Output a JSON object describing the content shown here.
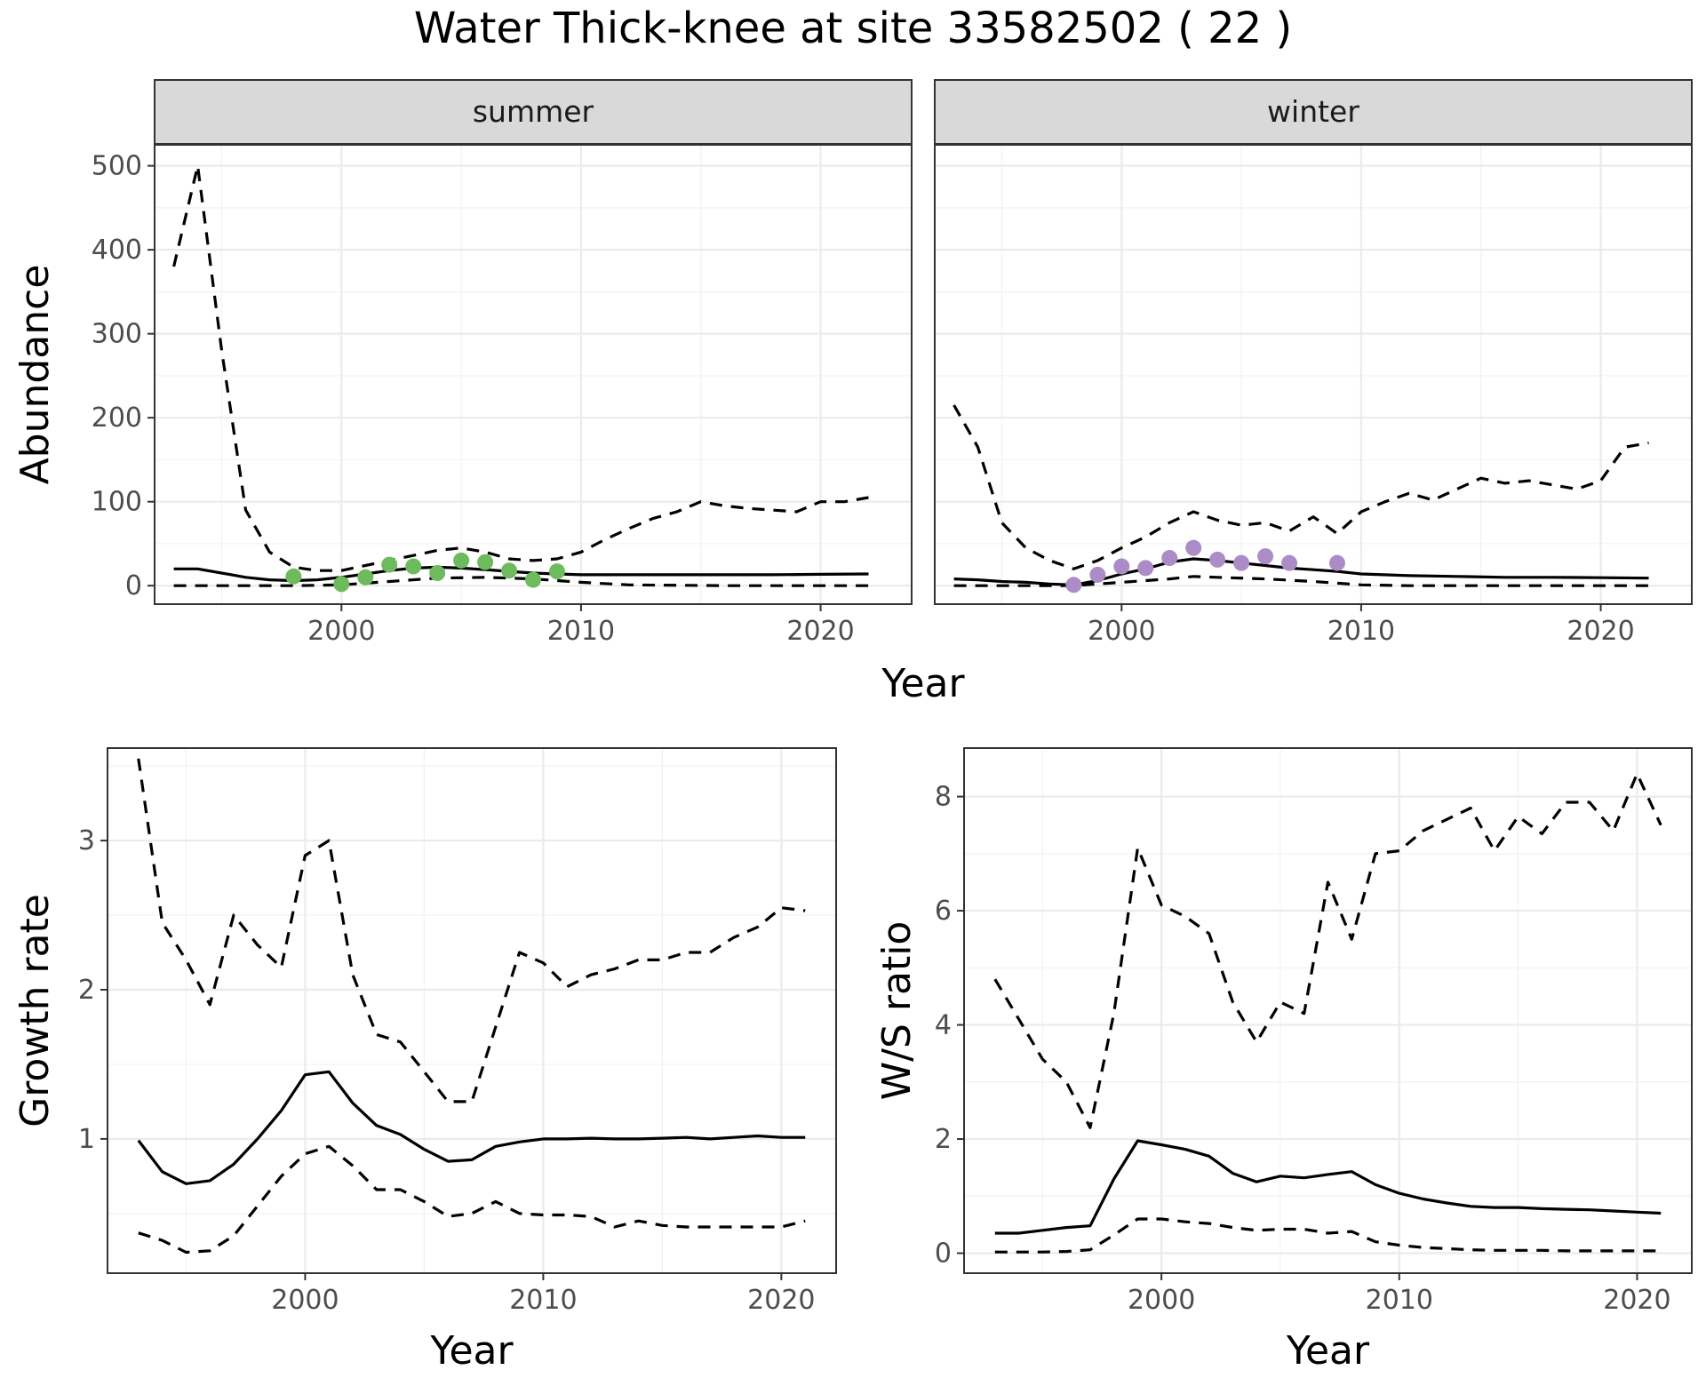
{
  "title": "Water Thick-knee at site 33582502 ( 22 )",
  "colors": {
    "summer_points": "#6dbb5c",
    "winter_points": "#ab8cc7",
    "strip_fill": "#d9d9d9"
  },
  "chart_data": [
    {
      "type": "line",
      "panel": "summer",
      "strip_label": "summer",
      "ylabel": "Abundance",
      "xlabel": "Year",
      "xlim": [
        1992.2,
        2023.8
      ],
      "ylim": [
        -22,
        525
      ],
      "x_ticks": [
        2000,
        2010,
        2020
      ],
      "y_ticks": [
        0,
        100,
        200,
        300,
        400,
        500
      ],
      "grid": true,
      "series": [
        {
          "style": "solid",
          "x": [
            1993,
            1994,
            1995,
            1996,
            1997,
            1998,
            1999,
            2000,
            2001,
            2002,
            2003,
            2004,
            2005,
            2006,
            2007,
            2008,
            2009,
            2010,
            2012,
            2014,
            2016,
            2018,
            2020,
            2022
          ],
          "y": [
            20,
            20,
            15,
            10,
            7,
            6,
            7,
            10,
            14,
            18,
            21,
            22,
            21,
            19,
            17,
            15,
            14,
            13,
            13,
            13,
            13,
            13,
            13.5,
            14
          ]
        },
        {
          "style": "dashed",
          "x": [
            1993,
            1994,
            1995,
            1996,
            1997,
            1998,
            1999,
            2000,
            2001,
            2002,
            2003,
            2004,
            2005,
            2006,
            2007,
            2008,
            2009,
            2010,
            2011,
            2012,
            2013,
            2014,
            2015,
            2016,
            2017,
            2018,
            2019,
            2020,
            2021,
            2022
          ],
          "y": [
            380,
            500,
            280,
            90,
            40,
            22,
            18,
            18,
            24,
            30,
            36,
            42,
            45,
            40,
            32,
            30,
            32,
            40,
            55,
            68,
            80,
            88,
            100,
            95,
            92,
            90,
            88,
            100,
            100,
            105
          ]
        },
        {
          "style": "dashed",
          "x": [
            1993,
            1996,
            1998,
            2000,
            2002,
            2004,
            2006,
            2008,
            2010,
            2012,
            2016,
            2022
          ],
          "y": [
            0,
            0,
            0,
            1,
            5,
            9,
            10,
            8,
            4,
            1,
            0,
            0
          ]
        },
        {
          "style": "points",
          "x": [
            1998,
            2000,
            2001,
            2002,
            2003,
            2004,
            2005,
            2006,
            2007,
            2008,
            2009
          ],
          "y": [
            11,
            2,
            10,
            25,
            23,
            15,
            30,
            28,
            18,
            7,
            17
          ]
        }
      ]
    },
    {
      "type": "line",
      "panel": "winter",
      "strip_label": "winter",
      "xlim": [
        1992.2,
        2023.8
      ],
      "ylim": [
        -22,
        525
      ],
      "x_ticks": [
        2000,
        2010,
        2020
      ],
      "grid": true,
      "series": [
        {
          "style": "solid",
          "x": [
            1993,
            1994,
            1995,
            1996,
            1997,
            1998,
            1999,
            2000,
            2001,
            2002,
            2003,
            2004,
            2005,
            2006,
            2007,
            2008,
            2009,
            2010,
            2012,
            2014,
            2016,
            2018,
            2020,
            2022
          ],
          "y": [
            8,
            7,
            5,
            4,
            2,
            1,
            6,
            14,
            20,
            28,
            32,
            30,
            27,
            24,
            21,
            19,
            17,
            14,
            12,
            11,
            10,
            10,
            9.5,
            9
          ]
        },
        {
          "style": "dashed",
          "x": [
            1993,
            1994,
            1995,
            1996,
            1997,
            1998,
            1999,
            2000,
            2001,
            2002,
            2003,
            2004,
            2005,
            2006,
            2007,
            2008,
            2009,
            2010,
            2011,
            2012,
            2013,
            2014,
            2015,
            2016,
            2017,
            2018,
            2019,
            2020,
            2021,
            2022
          ],
          "y": [
            215,
            165,
            75,
            45,
            30,
            20,
            30,
            45,
            58,
            75,
            88,
            78,
            72,
            75,
            65,
            82,
            62,
            88,
            100,
            110,
            102,
            115,
            128,
            122,
            125,
            120,
            115,
            125,
            165,
            170
          ]
        },
        {
          "style": "dashed",
          "x": [
            1993,
            1996,
            1998,
            1999,
            2000,
            2002,
            2003,
            2004,
            2006,
            2008,
            2010,
            2012,
            2016,
            2022
          ],
          "y": [
            0,
            0,
            0,
            2,
            4,
            8,
            11,
            10,
            8,
            5,
            1,
            0,
            0,
            0
          ]
        },
        {
          "style": "points",
          "x": [
            1998,
            1999,
            2000,
            2001,
            2002,
            2003,
            2004,
            2005,
            2006,
            2007,
            2009
          ],
          "y": [
            1,
            13,
            23,
            21,
            33,
            45,
            31,
            27,
            35,
            27,
            27
          ]
        }
      ]
    },
    {
      "type": "line",
      "panel": "growth",
      "ylabel": "Growth rate",
      "xlabel": "Year",
      "xlim": [
        1991.7,
        2022.3
      ],
      "ylim": [
        0.1,
        3.62
      ],
      "x_ticks": [
        2000,
        2010,
        2020
      ],
      "y_ticks": [
        1,
        2,
        3
      ],
      "grid": true,
      "series": [
        {
          "style": "solid",
          "x": [
            1993,
            1994,
            1995,
            1996,
            1997,
            1998,
            1999,
            2000,
            2001,
            2002,
            2003,
            2004,
            2005,
            2006,
            2007,
            2008,
            2009,
            2010,
            2011,
            2012,
            2013,
            2014,
            2015,
            2016,
            2017,
            2018,
            2019,
            2020,
            2021
          ],
          "y": [
            0.99,
            0.78,
            0.7,
            0.72,
            0.83,
            1.0,
            1.19,
            1.43,
            1.45,
            1.24,
            1.09,
            1.03,
            0.93,
            0.85,
            0.86,
            0.95,
            0.98,
            1.0,
            1.0,
            1.005,
            1.0,
            1.0,
            1.005,
            1.01,
            1.0,
            1.01,
            1.02,
            1.01,
            1.01
          ]
        },
        {
          "style": "dashed",
          "x": [
            1993,
            1994,
            1995,
            1996,
            1997,
            1998,
            1999,
            2000,
            2001,
            2002,
            2003,
            2004,
            2005,
            2006,
            2007,
            2008,
            2009,
            2010,
            2011,
            2012,
            2013,
            2014,
            2015,
            2016,
            2017,
            2018,
            2019,
            2020,
            2021
          ],
          "y": [
            3.55,
            2.45,
            2.2,
            1.9,
            2.5,
            2.3,
            2.15,
            2.9,
            3.0,
            2.1,
            1.7,
            1.65,
            1.45,
            1.25,
            1.25,
            1.75,
            2.25,
            2.18,
            2.02,
            2.1,
            2.14,
            2.2,
            2.2,
            2.25,
            2.25,
            2.35,
            2.42,
            2.55,
            2.53
          ]
        },
        {
          "style": "dashed",
          "x": [
            1993,
            1994,
            1995,
            1996,
            1997,
            1998,
            1999,
            2000,
            2001,
            2002,
            2003,
            2004,
            2005,
            2006,
            2007,
            2008,
            2009,
            2010,
            2011,
            2012,
            2013,
            2014,
            2015,
            2016,
            2017,
            2018,
            2019,
            2020,
            2021
          ],
          "y": [
            0.37,
            0.32,
            0.24,
            0.25,
            0.35,
            0.55,
            0.75,
            0.9,
            0.95,
            0.82,
            0.66,
            0.66,
            0.58,
            0.48,
            0.5,
            0.58,
            0.5,
            0.49,
            0.49,
            0.48,
            0.41,
            0.45,
            0.42,
            0.41,
            0.41,
            0.41,
            0.41,
            0.41,
            0.45
          ]
        }
      ]
    },
    {
      "type": "line",
      "panel": "ws_ratio",
      "ylabel": "W/S ratio",
      "xlabel": "Year",
      "xlim": [
        1991.7,
        2022.3
      ],
      "ylim": [
        -0.35,
        8.85
      ],
      "x_ticks": [
        2000,
        2010,
        2020
      ],
      "y_ticks": [
        0,
        2,
        4,
        6,
        8
      ],
      "grid": true,
      "series": [
        {
          "style": "solid",
          "x": [
            1993,
            1994,
            1995,
            1996,
            1997,
            1998,
            1999,
            2000,
            2001,
            2002,
            2003,
            2004,
            2005,
            2006,
            2007,
            2008,
            2009,
            2010,
            2011,
            2012,
            2013,
            2014,
            2015,
            2016,
            2017,
            2018,
            2019,
            2020,
            2021
          ],
          "y": [
            0.35,
            0.35,
            0.4,
            0.45,
            0.48,
            1.3,
            1.97,
            1.9,
            1.82,
            1.7,
            1.4,
            1.25,
            1.35,
            1.32,
            1.38,
            1.43,
            1.2,
            1.05,
            0.95,
            0.88,
            0.82,
            0.8,
            0.8,
            0.78,
            0.77,
            0.76,
            0.74,
            0.72,
            0.7
          ]
        },
        {
          "style": "dashed",
          "x": [
            1993,
            1994,
            1995,
            1996,
            1997,
            1998,
            1999,
            2000,
            2001,
            2002,
            2003,
            2004,
            2005,
            2006,
            2007,
            2008,
            2009,
            2010,
            2011,
            2012,
            2013,
            2014,
            2015,
            2016,
            2017,
            2018,
            2019,
            2020,
            2021
          ],
          "y": [
            4.8,
            4.1,
            3.4,
            3.0,
            2.2,
            4.2,
            7.1,
            6.1,
            5.9,
            5.6,
            4.4,
            3.7,
            4.4,
            4.2,
            6.5,
            5.5,
            7.0,
            7.05,
            7.4,
            7.6,
            7.8,
            7.05,
            7.65,
            7.35,
            7.9,
            7.9,
            7.4,
            8.4,
            7.5
          ]
        },
        {
          "style": "dashed",
          "x": [
            1993,
            1994,
            1995,
            1996,
            1997,
            1998,
            1999,
            2000,
            2001,
            2002,
            2003,
            2004,
            2005,
            2006,
            2007,
            2008,
            2009,
            2010,
            2011,
            2012,
            2013,
            2014,
            2015,
            2016,
            2017,
            2018,
            2019,
            2020,
            2021
          ],
          "y": [
            0.02,
            0.02,
            0.02,
            0.03,
            0.06,
            0.32,
            0.6,
            0.6,
            0.55,
            0.52,
            0.45,
            0.4,
            0.42,
            0.42,
            0.35,
            0.38,
            0.2,
            0.14,
            0.1,
            0.08,
            0.06,
            0.05,
            0.05,
            0.05,
            0.04,
            0.04,
            0.04,
            0.04,
            0.04
          ]
        }
      ]
    }
  ]
}
